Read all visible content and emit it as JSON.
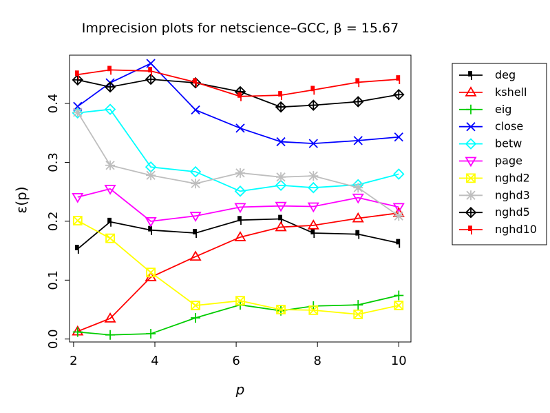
{
  "chart_data": {
    "type": "line",
    "title": "Imprecision plots for netscience–GCC, β = 15.67",
    "xlabel": "p",
    "ylabel": "ε(p)",
    "xlim": [
      1.9,
      10.3
    ],
    "ylim": [
      -0.005,
      0.482
    ],
    "xticks": [
      2,
      4,
      6,
      8,
      10
    ],
    "yticks": [
      0.0,
      0.1,
      0.2,
      0.3,
      0.4
    ],
    "xtick_labels": [
      "2",
      "4",
      "6",
      "8",
      "10"
    ],
    "ytick_labels": [
      "0.0",
      "0.1",
      "0.2",
      "0.3",
      "0.4"
    ],
    "legend_position": "right-outside",
    "series": [
      {
        "name": "deg",
        "color": "#000000",
        "marker": "rect-pin",
        "x": [
          2.1,
          2.9,
          3.9,
          5.0,
          6.1,
          7.1,
          7.9,
          9.0,
          10.0
        ],
        "y": [
          0.153,
          0.199,
          0.185,
          0.18,
          0.202,
          0.204,
          0.18,
          0.178,
          0.163
        ]
      },
      {
        "name": "kshell",
        "color": "#ff0000",
        "marker": "triangle",
        "x": [
          2.1,
          2.9,
          3.9,
          5.0,
          6.1,
          7.1,
          7.9,
          9.0,
          10.0
        ],
        "y": [
          0.013,
          0.035,
          0.105,
          0.14,
          0.173,
          0.19,
          0.193,
          0.205,
          0.214
        ]
      },
      {
        "name": "eig",
        "color": "#00cc00",
        "marker": "plus",
        "x": [
          2.1,
          2.9,
          3.9,
          5.0,
          6.1,
          7.1,
          7.9,
          9.0,
          10.0
        ],
        "y": [
          0.012,
          0.007,
          0.009,
          0.036,
          0.058,
          0.048,
          0.056,
          0.058,
          0.074
        ]
      },
      {
        "name": "close",
        "color": "#0000ff",
        "marker": "cross",
        "x": [
          2.1,
          2.9,
          3.9,
          5.0,
          6.1,
          7.1,
          7.9,
          9.0,
          10.0
        ],
        "y": [
          0.395,
          0.435,
          0.468,
          0.389,
          0.358,
          0.335,
          0.332,
          0.337,
          0.343
        ]
      },
      {
        "name": "betw",
        "color": "#00ffff",
        "marker": "diamond",
        "x": [
          2.1,
          2.9,
          3.9,
          5.0,
          6.1,
          7.1,
          7.9,
          9.0,
          10.0
        ],
        "y": [
          0.384,
          0.39,
          0.292,
          0.284,
          0.251,
          0.261,
          0.257,
          0.262,
          0.28
        ]
      },
      {
        "name": "page",
        "color": "#ff00ff",
        "marker": "triangle-down",
        "x": [
          2.1,
          2.9,
          3.9,
          5.0,
          6.1,
          7.1,
          7.9,
          9.0,
          10.0
        ],
        "y": [
          0.241,
          0.255,
          0.2,
          0.209,
          0.224,
          0.226,
          0.225,
          0.24,
          0.224
        ]
      },
      {
        "name": "nghd2",
        "color": "#ffff00",
        "marker": "square-x",
        "x": [
          2.1,
          2.9,
          3.9,
          5.0,
          6.1,
          7.1,
          7.9,
          9.0,
          10.0
        ],
        "y": [
          0.201,
          0.171,
          0.113,
          0.057,
          0.065,
          0.05,
          0.049,
          0.042,
          0.057
        ]
      },
      {
        "name": "nghd3",
        "color": "#bebebe",
        "marker": "asterisk",
        "x": [
          2.1,
          2.9,
          3.9,
          5.0,
          6.1,
          7.1,
          7.9,
          9.0,
          10.0
        ],
        "y": [
          0.385,
          0.295,
          0.278,
          0.264,
          0.282,
          0.275,
          0.277,
          0.257,
          0.209
        ]
      },
      {
        "name": "nghd5",
        "color": "#000000",
        "marker": "diamond-plus",
        "x": [
          2.1,
          2.9,
          3.9,
          5.0,
          6.1,
          7.1,
          7.9,
          9.0,
          10.0
        ],
        "y": [
          0.44,
          0.428,
          0.441,
          0.435,
          0.42,
          0.394,
          0.397,
          0.403,
          0.415
        ]
      },
      {
        "name": "nghd10",
        "color": "#ff0000",
        "marker": "rect-pin",
        "x": [
          2.1,
          2.9,
          3.9,
          5.0,
          6.1,
          7.1,
          7.9,
          9.0,
          10.0
        ],
        "y": [
          0.449,
          0.457,
          0.455,
          0.436,
          0.412,
          0.414,
          0.423,
          0.436,
          0.441
        ]
      }
    ]
  }
}
